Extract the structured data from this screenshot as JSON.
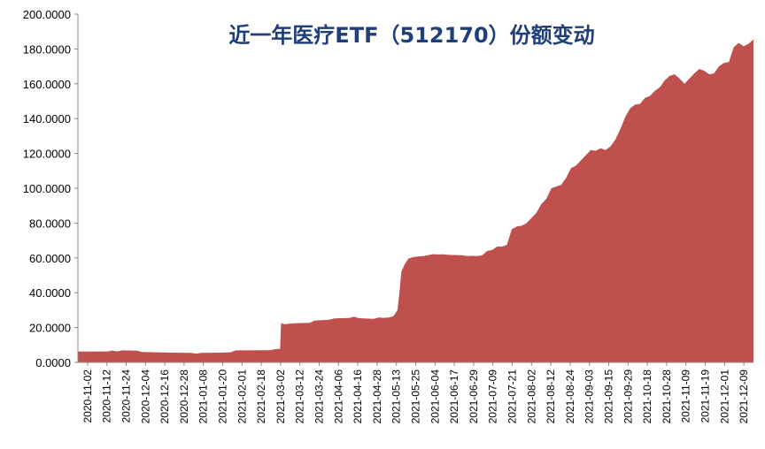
{
  "chart_data": {
    "type": "area",
    "title": "近一年医疗ETF（512170）份额变动",
    "xlabel": "",
    "ylabel": "",
    "ylim": [
      0,
      200
    ],
    "y_ticks": [
      "0.0000",
      "20.0000",
      "40.0000",
      "60.0000",
      "80.0000",
      "100.0000",
      "120.0000",
      "140.0000",
      "160.0000",
      "180.0000",
      "200.0000"
    ],
    "grid": false,
    "x_ticks": [
      "2020-11-02",
      "2020-11-12",
      "2020-11-24",
      "2020-12-04",
      "2020-12-16",
      "2020-12-28",
      "2021-01-08",
      "2021-01-20",
      "2021-02-01",
      "2021-02-18",
      "2021-03-02",
      "2021-03-12",
      "2021-03-24",
      "2021-04-06",
      "2021-04-16",
      "2021-04-28",
      "2021-05-13",
      "2021-05-25",
      "2021-06-04",
      "2021-06-17",
      "2021-06-29",
      "2021-07-09",
      "2021-07-21",
      "2021-08-02",
      "2021-08-12",
      "2021-08-24",
      "2021-09-03",
      "2021-09-15",
      "2021-09-29",
      "2021-10-18",
      "2021-10-28",
      "2021-11-09",
      "2021-11-19",
      "2021-12-01",
      "2021-12-09"
    ],
    "colors": {
      "fill": "#c0504d",
      "title": "#1f3f7a"
    },
    "series": [
      {
        "values": [
          [
            0,
            6.2
          ],
          [
            6,
            6.3
          ],
          [
            7,
            6.8
          ],
          [
            8,
            6.3
          ],
          [
            9,
            6.9
          ],
          [
            12,
            6.7
          ],
          [
            13,
            6.0
          ],
          [
            19,
            5.6
          ],
          [
            23,
            5.5
          ],
          [
            24,
            5.0
          ],
          [
            25,
            5.5
          ],
          [
            29,
            5.6
          ],
          [
            31,
            5.8
          ],
          [
            32,
            6.9
          ],
          [
            39,
            7.0
          ],
          [
            40,
            7.6
          ],
          [
            41,
            7.7
          ],
          [
            41.2,
            22.5
          ],
          [
            42,
            22.0
          ],
          [
            43,
            22.3
          ],
          [
            44,
            22.5
          ],
          [
            47,
            22.7
          ],
          [
            48,
            24.0
          ],
          [
            51,
            24.5
          ],
          [
            52,
            25.3
          ],
          [
            55,
            25.5
          ],
          [
            56,
            26.2
          ],
          [
            57,
            25.4
          ],
          [
            60,
            25.0
          ],
          [
            61,
            25.8
          ],
          [
            62,
            25.6
          ],
          [
            63,
            25.8
          ],
          [
            64,
            26.5
          ],
          [
            64.8,
            30
          ],
          [
            65.2,
            40
          ],
          [
            65.6,
            52
          ],
          [
            66.2,
            56
          ],
          [
            67,
            59.5
          ],
          [
            68,
            60.5
          ],
          [
            69,
            60.8
          ],
          [
            70,
            61.0
          ],
          [
            71,
            61.5
          ],
          [
            72,
            62.2
          ],
          [
            73,
            62.0
          ],
          [
            74,
            62.1
          ],
          [
            75,
            61.8
          ],
          [
            76,
            61.7
          ],
          [
            78,
            61.5
          ],
          [
            79,
            61.0
          ],
          [
            80,
            61.2
          ],
          [
            81,
            61.0
          ],
          [
            82,
            61.5
          ],
          [
            83,
            64.0
          ],
          [
            84,
            64.5
          ],
          [
            85,
            66.5
          ],
          [
            86,
            66.5
          ],
          [
            87,
            67.5
          ],
          [
            88,
            76.5
          ],
          [
            89,
            78.0
          ],
          [
            90,
            78.5
          ],
          [
            91,
            80.0
          ],
          [
            92,
            83.0
          ],
          [
            93,
            86.0
          ],
          [
            94,
            91.0
          ],
          [
            95,
            94.0
          ],
          [
            96,
            100.0
          ],
          [
            97,
            101.0
          ],
          [
            98,
            102.0
          ],
          [
            99,
            106.0
          ],
          [
            100,
            111.5
          ],
          [
            101,
            113.0
          ],
          [
            102,
            116.0
          ],
          [
            103,
            119.0
          ],
          [
            104,
            122.0
          ],
          [
            105,
            121.5
          ],
          [
            106,
            123.0
          ],
          [
            107,
            122.0
          ],
          [
            108,
            124.0
          ],
          [
            109,
            128.0
          ],
          [
            110,
            134.0
          ],
          [
            111,
            141.0
          ],
          [
            112,
            146.0
          ],
          [
            113,
            148.0
          ],
          [
            114,
            148.5
          ],
          [
            115,
            152.0
          ],
          [
            116,
            153.0
          ],
          [
            117,
            156.0
          ],
          [
            118,
            158.0
          ],
          [
            119,
            162.0
          ],
          [
            120,
            164.5
          ],
          [
            121,
            165.5
          ],
          [
            122,
            163.0
          ],
          [
            123,
            160.0
          ],
          [
            124,
            163.0
          ],
          [
            125,
            166.0
          ],
          [
            126,
            168.5
          ],
          [
            127,
            167.5
          ],
          [
            128,
            165.5
          ],
          [
            129,
            166.0
          ],
          [
            130,
            170.0
          ],
          [
            131,
            172.0
          ],
          [
            132,
            172.5
          ],
          [
            133,
            181.0
          ],
          [
            134,
            183.5
          ],
          [
            135,
            181.5
          ],
          [
            136,
            183.0
          ],
          [
            137,
            185.5
          ]
        ]
      }
    ]
  }
}
